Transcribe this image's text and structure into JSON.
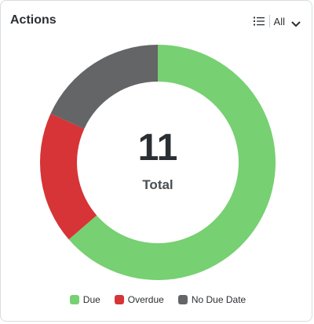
{
  "card": {
    "title": "Actions"
  },
  "filter": {
    "label": "All",
    "icon": "list-icon",
    "chevron_icon": "chevron-down-icon"
  },
  "center": {
    "value": "11",
    "label": "Total"
  },
  "chart_data": {
    "type": "pie",
    "donut": true,
    "categories": [
      "Due",
      "Overdue",
      "No Due Date"
    ],
    "values": [
      7,
      2,
      2
    ],
    "total": 11,
    "colors": [
      "#77d072",
      "#d63436",
      "#646566"
    ],
    "legend_position": "bottom"
  }
}
